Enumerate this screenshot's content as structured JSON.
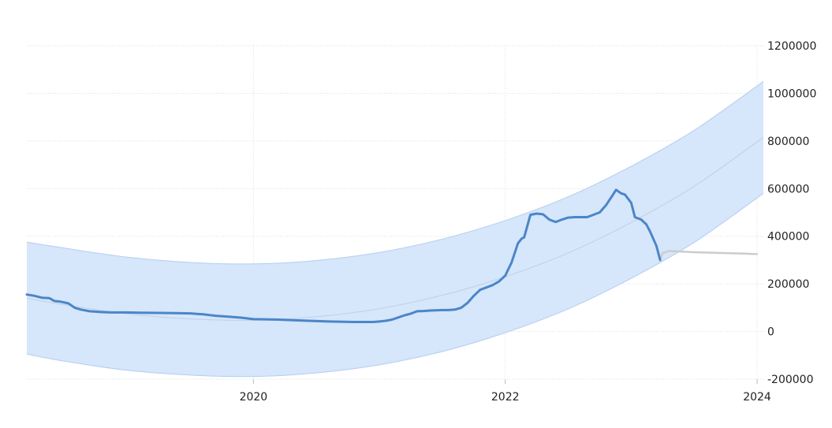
{
  "chart_data": {
    "type": "line",
    "title": "",
    "xlabel": "",
    "ylabel": "",
    "xlim": [
      2018.2,
      2024.05
    ],
    "ylim": [
      -200000,
      1200000
    ],
    "x_ticks": [
      {
        "value": 2020,
        "label": "2020"
      },
      {
        "value": 2022,
        "label": "2022"
      },
      {
        "value": 2024,
        "label": "2024"
      }
    ],
    "y_ticks": [
      {
        "value": 1200000,
        "label": "1200000"
      },
      {
        "value": 1000000,
        "label": "1000000"
      },
      {
        "value": 800000,
        "label": "800000"
      },
      {
        "value": 600000,
        "label": "600000"
      },
      {
        "value": 400000,
        "label": "400000"
      },
      {
        "value": 200000,
        "label": "200000"
      },
      {
        "value": 0,
        "label": "0"
      },
      {
        "value": -200000,
        "label": "-200000"
      }
    ],
    "grid": true,
    "y_axis_side": "right",
    "colors": {
      "actual": "#4a86c8",
      "forecast": "#cccccc",
      "band_fill": "#d6e6fb",
      "band_edge": "#b5cdf0",
      "trend": "#c0cfe4"
    },
    "band": {
      "x": [
        2018.2,
        2018.5,
        2019.0,
        2019.5,
        2020.0,
        2020.5,
        2021.0,
        2021.5,
        2022.0,
        2022.5,
        2023.0,
        2023.5,
        2024.05
      ],
      "upper": [
        375000,
        350000,
        312000,
        290000,
        284000,
        298000,
        332000,
        388000,
        466000,
        566000,
        694000,
        845000,
        1050000
      ],
      "lower": [
        -95000,
        -125000,
        -163000,
        -183000,
        -189000,
        -174000,
        -140000,
        -84000,
        -5000,
        95000,
        223000,
        374000,
        580000
      ],
      "trend": [
        140000,
        112000,
        74000,
        53000,
        47000,
        62000,
        96000,
        152000,
        230000,
        330000,
        458000,
        610000,
        815000
      ]
    },
    "series": [
      {
        "x": [
          2018.2,
          2018.26,
          2018.32,
          2018.38,
          2018.42,
          2018.47,
          2018.53,
          2018.58,
          2018.63,
          2018.7,
          2018.78,
          2018.87,
          2019.0,
          2019.1,
          2019.25,
          2019.38,
          2019.5,
          2019.6,
          2019.7,
          2019.8,
          2019.9,
          2020.0,
          2020.2,
          2020.4,
          2020.6,
          2020.8,
          2020.95,
          2021.0,
          2021.05,
          2021.1,
          2021.2,
          2021.25,
          2021.3,
          2021.35,
          2021.4,
          2021.5,
          2021.55,
          2021.6,
          2021.65,
          2021.7,
          2021.75,
          2021.8,
          2021.85,
          2021.9,
          2021.95,
          2022.0,
          2022.05,
          2022.1,
          2022.13,
          2022.15,
          2022.2,
          2022.25,
          2022.3,
          2022.35,
          2022.4,
          2022.45,
          2022.5,
          2022.55,
          2022.6,
          2022.65,
          2022.7,
          2022.75,
          2022.8,
          2022.85,
          2022.88,
          2022.92,
          2022.95,
          2023.0,
          2023.03,
          2023.08,
          2023.12,
          2023.15,
          2023.2,
          2023.23
        ],
        "values": [
          155000,
          150000,
          142000,
          140000,
          128000,
          125000,
          118000,
          100000,
          92000,
          85000,
          82000,
          80000,
          80000,
          79000,
          78000,
          77000,
          76000,
          72000,
          66000,
          62000,
          58000,
          52000,
          50000,
          46000,
          42000,
          40000,
          40000,
          42000,
          45000,
          50000,
          68000,
          75000,
          85000,
          86000,
          88000,
          90000,
          90000,
          92000,
          100000,
          120000,
          150000,
          175000,
          185000,
          195000,
          210000,
          235000,
          290000,
          370000,
          390000,
          395000,
          490000,
          495000,
          492000,
          470000,
          460000,
          470000,
          478000,
          480000,
          480000,
          480000,
          490000,
          500000,
          530000,
          570000,
          595000,
          580000,
          575000,
          540000,
          480000,
          470000,
          450000,
          420000,
          360000,
          300000
        ]
      },
      {
        "x": [
          2023.23,
          2023.25,
          2023.3,
          2023.5,
          2023.7,
          2023.9,
          2024.0
        ],
        "values": [
          300000,
          330000,
          338000,
          333000,
          330000,
          327000,
          325000
        ]
      }
    ]
  }
}
